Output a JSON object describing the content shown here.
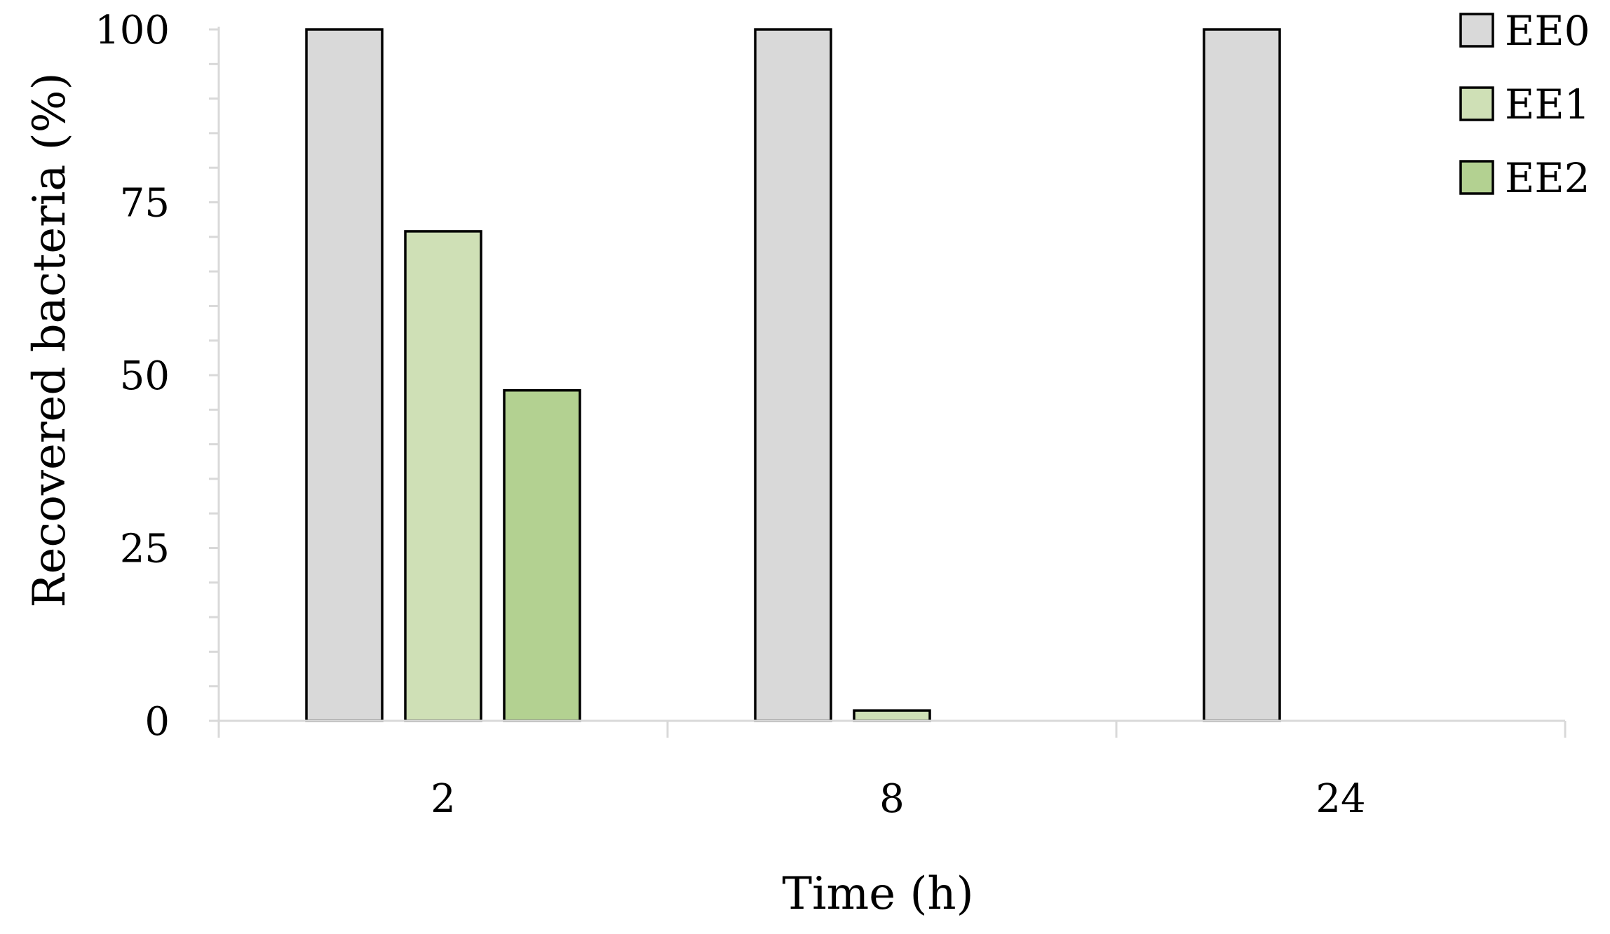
{
  "chart_data": {
    "type": "bar",
    "categories": [
      "2",
      "8",
      "24"
    ],
    "series": [
      {
        "name": "EE0",
        "values": [
          100,
          100,
          100
        ],
        "color": "#d9d9d9"
      },
      {
        "name": "EE1",
        "values": [
          70.8,
          1.5,
          0
        ],
        "color": "#cfe0b6"
      },
      {
        "name": "EE2",
        "values": [
          47.8,
          0,
          0
        ],
        "color": "#b3d191"
      }
    ],
    "yticks": [
      0,
      25,
      50,
      75,
      100
    ],
    "ylim": [
      0,
      100
    ],
    "minor_tick_step": 5,
    "xlabel": "Time (h)",
    "ylabel": "Recovered bacteria (%)",
    "legend_position": "top-right",
    "grid": false
  }
}
